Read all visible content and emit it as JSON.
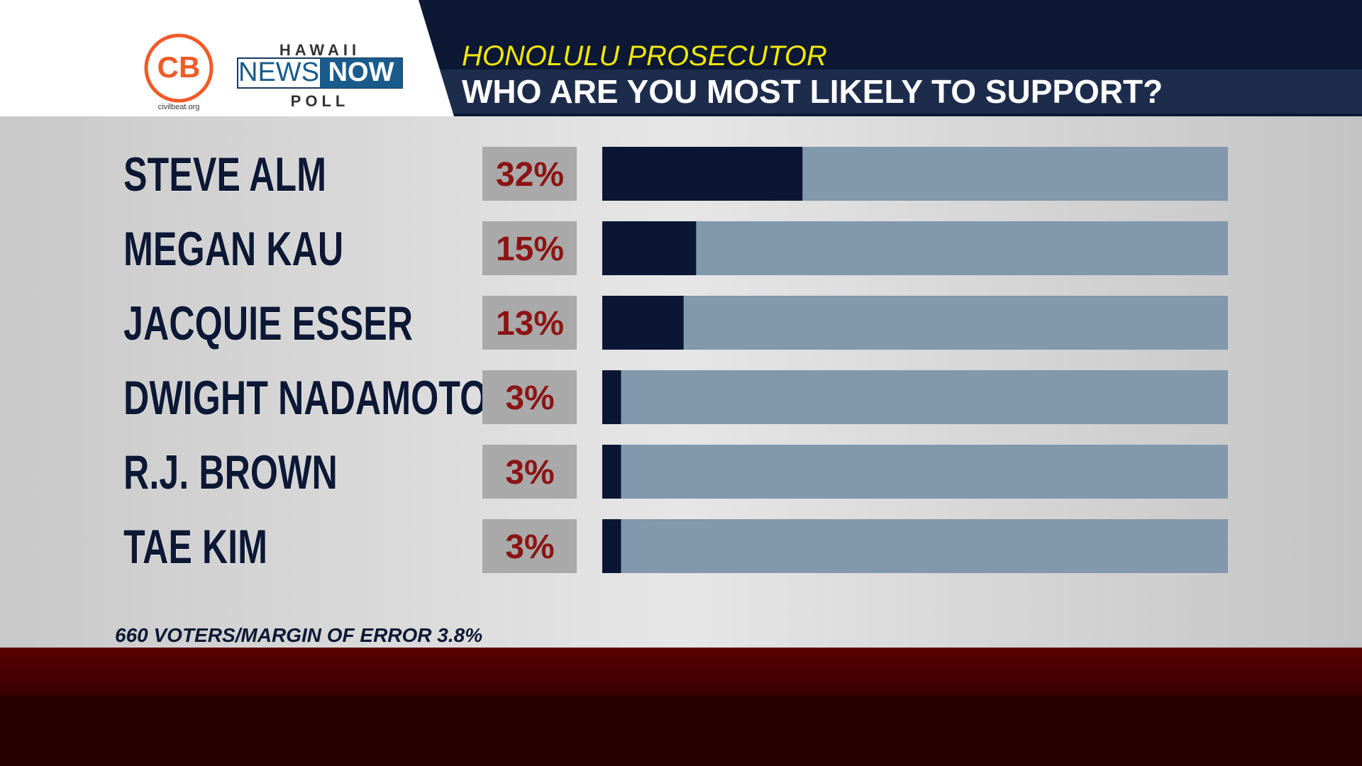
{
  "branding": {
    "logo_text": "CB",
    "logo_site": "civilbeat.org",
    "poll_top": "HAWAII",
    "poll_news": "NEWS",
    "poll_now": "NOW",
    "poll_bottom": "POLL"
  },
  "chart_data": {
    "type": "bar",
    "title": "HONOLULU PROSECUTOR",
    "subtitle": "WHO ARE YOU MOST LIKELY TO SUPPORT?",
    "note": "660 VOTERS/MARGIN OF ERROR 3.8%",
    "categories": [
      "STEVE ALM",
      "MEGAN KAU",
      "JACQUIE ESSER",
      "DWIGHT NADAMOTO",
      "R.J. BROWN",
      "TAE KIM"
    ],
    "values": [
      32,
      15,
      13,
      3,
      3,
      3
    ],
    "value_labels": [
      "32%",
      "15%",
      "13%",
      "3%",
      "3%",
      "3%"
    ],
    "xlim": [
      0,
      100
    ],
    "color": "#0b1634",
    "track_color": "#8198ad"
  }
}
